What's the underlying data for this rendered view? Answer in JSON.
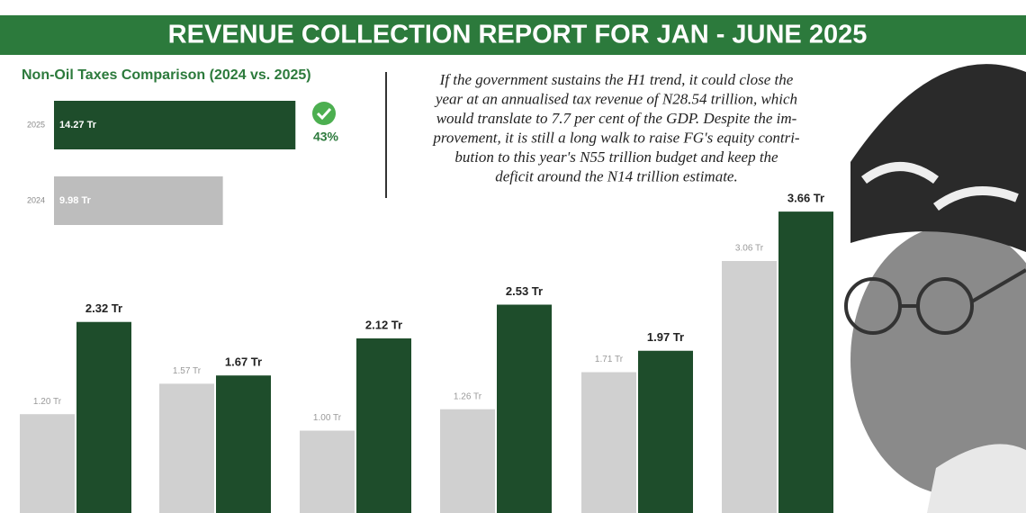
{
  "title": "REVENUE COLLECTION REPORT FOR JAN - JUNE 2025",
  "note_lines": [
    "If the government sustains the H1 trend, it could close the",
    "year at an annualised tax revenue of N28.54 trillion, which",
    "would translate to 7.7 per cent of the GDP.  Despite the im-",
    "provement, it is still a long walk to raise FG's equity contri-",
    "bution to this year's N55 trillion budget and keep the",
    "deficit around the N14 trillion estimate."
  ],
  "chart_data": [
    {
      "type": "hbar",
      "title": "Non-Oil Taxes Comparison (2024 vs. 2025)",
      "categories": [
        "2025",
        "2024"
      ],
      "values": [
        14.27,
        9.98
      ],
      "value_labels": [
        "14.27 Tr",
        "9.98 Tr"
      ],
      "colors": [
        "#1e4d2b",
        "#bdbdbd"
      ],
      "annotation": "43%"
    },
    {
      "type": "grouped-bar",
      "series": [
        {
          "color": "#d0d0d0",
          "values": [
            1.2,
            1.57,
            1.0,
            1.26,
            1.71,
            3.06
          ],
          "value_labels": [
            "1.20 Tr",
            "1.57 Tr",
            "1.00 Tr",
            "1.26 Tr",
            "1.71 Tr",
            "3.06 Tr"
          ]
        },
        {
          "color": "#1e4d2b",
          "values": [
            2.32,
            1.67,
            2.12,
            2.53,
            1.97,
            3.66
          ],
          "value_labels": [
            "2.32 Tr",
            "1.67 Tr",
            "2.12 Tr",
            "2.53 Tr",
            "1.97 Tr",
            "3.66 Tr"
          ]
        }
      ]
    }
  ]
}
